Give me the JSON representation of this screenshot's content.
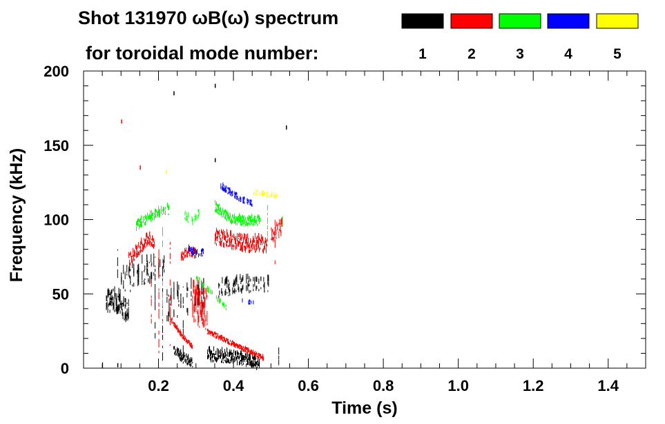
{
  "chart_data": {
    "type": "heatmap",
    "title_line1": "Shot 131970 ωB(ω) spectrum",
    "title_line2": "for toroidal mode number:",
    "xlabel": "Time (s)",
    "ylabel": "Frequency (kHz)",
    "xlim": [
      0.0,
      1.5
    ],
    "ylim": [
      0,
      200
    ],
    "x_ticks": [
      "0.2",
      "0.4",
      "0.6",
      "0.8",
      "1.0",
      "1.2",
      "1.4"
    ],
    "x_tick_values": [
      0.2,
      0.4,
      0.6,
      0.8,
      1.0,
      1.2,
      1.4
    ],
    "y_ticks": [
      "0",
      "50",
      "100",
      "150",
      "200"
    ],
    "y_tick_values": [
      0,
      50,
      100,
      150,
      200
    ],
    "legend_placement": "top-right",
    "modes": [
      {
        "name": "1",
        "color": "#000000"
      },
      {
        "name": "2",
        "color": "#ff0000"
      },
      {
        "name": "3",
        "color": "#00ff00"
      },
      {
        "name": "4",
        "color": "#0000ff"
      },
      {
        "name": "5",
        "color": "#ffff00"
      }
    ],
    "features": [
      {
        "mode": "1",
        "kind": "band",
        "t": [
          0.06,
          0.08,
          0.1,
          0.12
        ],
        "f": [
          42,
          45,
          40,
          35
        ],
        "width": 14,
        "density": 1.0
      },
      {
        "mode": "1",
        "kind": "band",
        "t": [
          0.1,
          0.14,
          0.18,
          0.22
        ],
        "f": [
          55,
          62,
          65,
          68
        ],
        "width": 16,
        "density": 0.55
      },
      {
        "mode": "1",
        "kind": "band",
        "t": [
          0.24,
          0.26,
          0.29
        ],
        "f": [
          12,
          7,
          3
        ],
        "width": 6,
        "density": 1.0
      },
      {
        "mode": "1",
        "kind": "band",
        "t": [
          0.33,
          0.38,
          0.43,
          0.47
        ],
        "f": [
          8,
          7,
          5,
          2
        ],
        "width": 8,
        "density": 1.0
      },
      {
        "mode": "1",
        "kind": "band",
        "t": [
          0.36,
          0.42,
          0.5
        ],
        "f": [
          52,
          55,
          55
        ],
        "width": 10,
        "density": 0.45
      },
      {
        "mode": "1",
        "kind": "band",
        "t": [
          0.22,
          0.27,
          0.32
        ],
        "f": [
          40,
          45,
          48
        ],
        "width": 20,
        "density": 0.3
      },
      {
        "mode": "2",
        "kind": "band",
        "t": [
          0.12,
          0.15,
          0.17,
          0.19
        ],
        "f": [
          72,
          80,
          86,
          83
        ],
        "width": 8,
        "density": 1.0
      },
      {
        "mode": "2",
        "kind": "band",
        "t": [
          0.26,
          0.28,
          0.3
        ],
        "f": [
          74,
          77,
          76
        ],
        "width": 6,
        "density": 1.0
      },
      {
        "mode": "2",
        "kind": "band",
        "t": [
          0.29,
          0.31,
          0.33
        ],
        "f": [
          42,
          40,
          37
        ],
        "width": 26,
        "density": 1.0
      },
      {
        "mode": "2",
        "kind": "band",
        "t": [
          0.23,
          0.26,
          0.29
        ],
        "f": [
          33,
          22,
          14
        ],
        "width": 3,
        "density": 1.0
      },
      {
        "mode": "2",
        "kind": "band",
        "t": [
          0.33,
          0.38,
          0.43,
          0.48
        ],
        "f": [
          24,
          18,
          12,
          6
        ],
        "width": 3,
        "density": 1.0
      },
      {
        "mode": "2",
        "kind": "band",
        "t": [
          0.35,
          0.4,
          0.45,
          0.49
        ],
        "f": [
          87,
          84,
          82,
          82
        ],
        "width": 10,
        "density": 1.0
      },
      {
        "mode": "2",
        "kind": "band",
        "t": [
          0.5,
          0.52,
          0.53
        ],
        "f": [
          88,
          92,
          95
        ],
        "width": 10,
        "density": 0.8
      },
      {
        "mode": "3",
        "kind": "band",
        "t": [
          0.14,
          0.17,
          0.2,
          0.23
        ],
        "f": [
          95,
          100,
          104,
          106
        ],
        "width": 6,
        "density": 0.7
      },
      {
        "mode": "3",
        "kind": "band",
        "t": [
          0.27,
          0.29,
          0.31
        ],
        "f": [
          102,
          98,
          104
        ],
        "width": 5,
        "density": 0.5
      },
      {
        "mode": "3",
        "kind": "band",
        "t": [
          0.35,
          0.39,
          0.43,
          0.47
        ],
        "f": [
          108,
          100,
          98,
          99
        ],
        "width": 6,
        "density": 1.0
      },
      {
        "mode": "3",
        "kind": "band",
        "t": [
          0.3,
          0.34,
          0.38
        ],
        "f": [
          60,
          50,
          40
        ],
        "width": 3,
        "density": 0.5
      },
      {
        "mode": "4",
        "kind": "band",
        "t": [
          0.28,
          0.3,
          0.32
        ],
        "f": [
          79,
          76,
          78
        ],
        "width": 5,
        "density": 0.8
      },
      {
        "mode": "4",
        "kind": "band",
        "t": [
          0.36,
          0.39,
          0.42,
          0.45
        ],
        "f": [
          123,
          118,
          113,
          110
        ],
        "width": 4,
        "density": 0.7
      },
      {
        "mode": "4",
        "kind": "band",
        "t": [
          0.41,
          0.44,
          0.47
        ],
        "f": [
          46,
          44,
          43
        ],
        "width": 3,
        "density": 0.3
      },
      {
        "mode": "5",
        "kind": "band",
        "t": [
          0.45,
          0.49,
          0.52
        ],
        "f": [
          118,
          116,
          115
        ],
        "width": 3,
        "density": 0.4
      }
    ],
    "streaks": [
      {
        "mode": "1",
        "t": 0.05,
        "f0": 0,
        "f1": 4
      },
      {
        "mode": "1",
        "t": 0.19,
        "f0": 20,
        "f1": 75
      },
      {
        "mode": "1",
        "t": 0.21,
        "f0": 5,
        "f1": 70
      },
      {
        "mode": "1",
        "t": 0.09,
        "f0": 55,
        "f1": 80
      },
      {
        "mode": "1",
        "t": 0.52,
        "f0": 2,
        "f1": 14
      },
      {
        "mode": "2",
        "t": 0.2,
        "f0": 10,
        "f1": 80
      },
      {
        "mode": "2",
        "t": 0.23,
        "f0": 15,
        "f1": 85
      },
      {
        "mode": "2",
        "t": 0.18,
        "f0": 30,
        "f1": 70
      },
      {
        "mode": "2",
        "t": 0.51,
        "f0": 70,
        "f1": 100
      },
      {
        "mode": "3",
        "t": 0.21,
        "f0": 30,
        "f1": 95
      },
      {
        "mode": "3",
        "t": 0.53,
        "f0": 95,
        "f1": 125
      },
      {
        "mode": "3",
        "t": 0.49,
        "f0": 85,
        "f1": 110
      },
      {
        "mode": "1",
        "t": 0.11,
        "f0": 40,
        "f1": 65
      },
      {
        "mode": "1",
        "t": 0.265,
        "f0": 3,
        "f1": 55
      }
    ],
    "specks": [
      {
        "mode": "2",
        "t": 0.1,
        "f": 166
      },
      {
        "mode": "1",
        "t": 0.24,
        "f": 185
      },
      {
        "mode": "1",
        "t": 0.35,
        "f": 140
      },
      {
        "mode": "1",
        "t": 0.54,
        "f": 162
      },
      {
        "mode": "2",
        "t": 0.15,
        "f": 135
      },
      {
        "mode": "5",
        "t": 0.22,
        "f": 132
      },
      {
        "mode": "1",
        "t": 0.09,
        "f": 2
      },
      {
        "mode": "1",
        "t": 0.35,
        "f": 190
      }
    ]
  }
}
